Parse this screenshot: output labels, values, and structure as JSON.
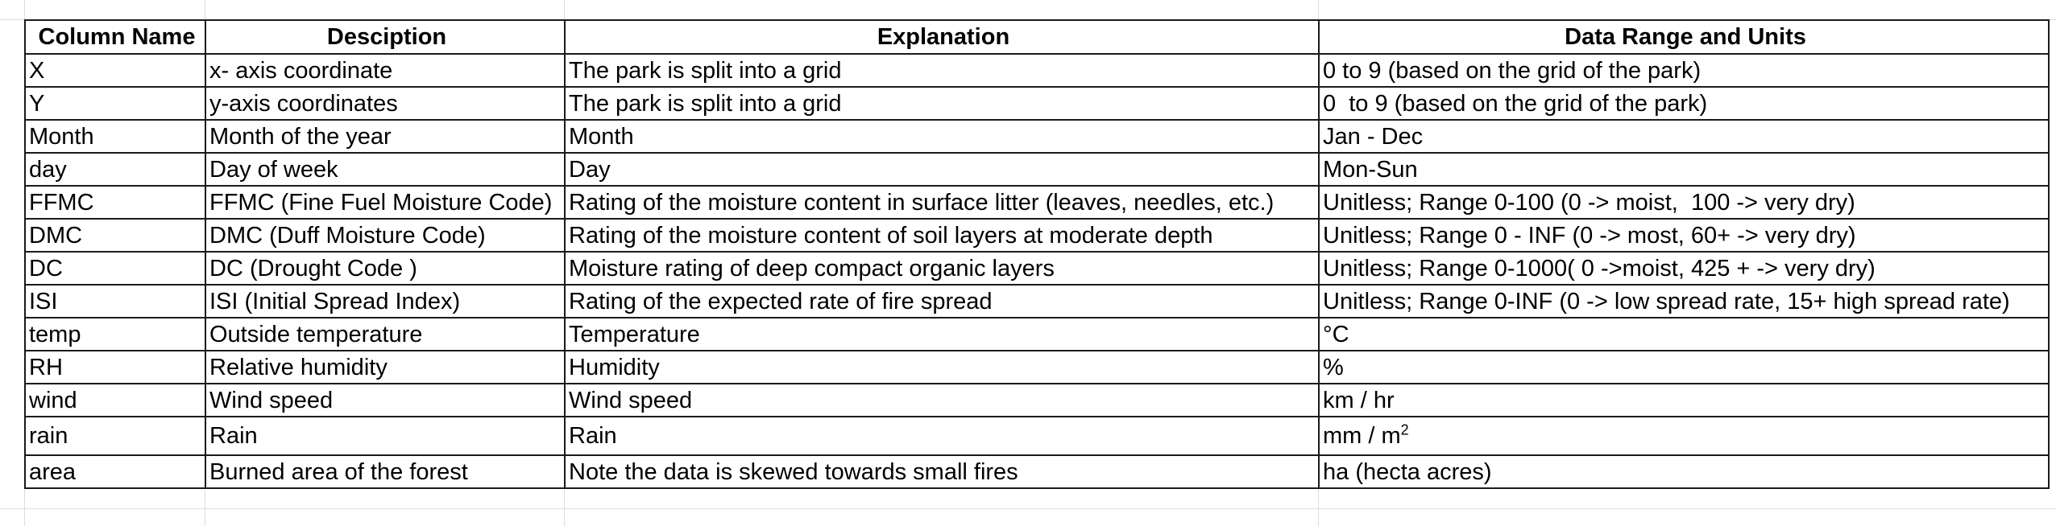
{
  "table": {
    "headers": [
      "Column Name",
      "Desciption",
      "Explanation",
      "Data Range and Units"
    ],
    "rows": [
      [
        "X",
        "x- axis coordinate",
        "The park is split into a grid",
        "0 to 9 (based on the grid of the park)"
      ],
      [
        "Y",
        "y-axis coordinates",
        "The park is split into a grid",
        "0  to 9 (based on the grid of the park)"
      ],
      [
        "Month",
        "Month of the year",
        "Month",
        "Jan - Dec"
      ],
      [
        "day",
        "Day of week",
        "Day",
        "Mon-Sun"
      ],
      [
        "FFMC",
        "FFMC (Fine Fuel Moisture Code)",
        "Rating of the moisture content in surface litter (leaves, needles, etc.)",
        "Unitless; Range 0-100 (0 -> moist,  100 -> very dry)"
      ],
      [
        "DMC",
        "DMC (Duff Moisture Code)",
        "Rating of the moisture content of soil layers at moderate depth",
        "Unitless; Range 0 - INF (0 -> most, 60+ -> very dry)"
      ],
      [
        "DC",
        "DC (Drought Code )",
        "Moisture rating of deep compact organic layers",
        "Unitless; Range 0-1000( 0 ->moist, 425 + -> very dry)"
      ],
      [
        "ISI",
        "ISI (Initial Spread Index)",
        "Rating of the expected rate of fire spread",
        "Unitless; Range 0-INF (0 -> low spread rate, 15+ high spread rate)"
      ],
      [
        "temp",
        "Outside temperature",
        "Temperature",
        "°C"
      ],
      [
        "RH",
        "Relative humidity",
        "Humidity",
        "%"
      ],
      [
        "wind",
        "Wind speed",
        "Wind speed",
        "km / hr"
      ],
      [
        "rain",
        "Rain",
        "Rain",
        "mm / m"
      ],
      [
        "area",
        "Burned area of the forest",
        "Note the data is skewed towards small fires",
        "ha (hecta acres)"
      ]
    ],
    "rain_unit_superscript": "2"
  }
}
